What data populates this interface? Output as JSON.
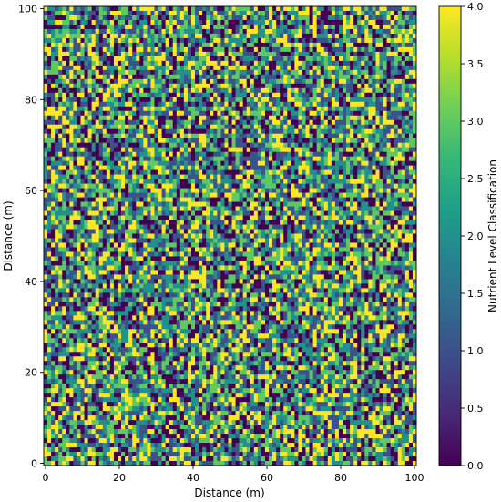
{
  "chart_data": {
    "type": "heatmap",
    "title": "",
    "xlabel": "Distance (m)",
    "ylabel": "Distance (m)",
    "xlim": [
      0,
      100
    ],
    "ylim": [
      0,
      100
    ],
    "x_ticks": [
      "0",
      "20",
      "40",
      "60",
      "80",
      "100"
    ],
    "y_ticks": [
      "0",
      "20",
      "40",
      "60",
      "80",
      "100"
    ],
    "grid": false,
    "colormap": "viridis",
    "value_range": [
      0,
      4
    ],
    "discrete_levels": [
      0,
      1,
      2,
      3,
      4
    ],
    "grid_resolution": "101 x 101 cells, random integer classes 0-4 (values not individually legible)",
    "colorbar": {
      "label": "Nutrient Level Classification",
      "ticks": [
        "0.0",
        "0.5",
        "1.0",
        "1.5",
        "2.0",
        "2.5",
        "3.0",
        "3.5",
        "4.0"
      ],
      "placement": "right"
    },
    "level_colors": [
      "#440154",
      "#3b528b",
      "#21918c",
      "#5ec962",
      "#fde725"
    ],
    "colormap_stops": [
      "#440154",
      "#482878",
      "#3e4989",
      "#31688e",
      "#26828e",
      "#1f9e89",
      "#35b779",
      "#6ece58",
      "#b5de2b",
      "#fde725"
    ]
  }
}
